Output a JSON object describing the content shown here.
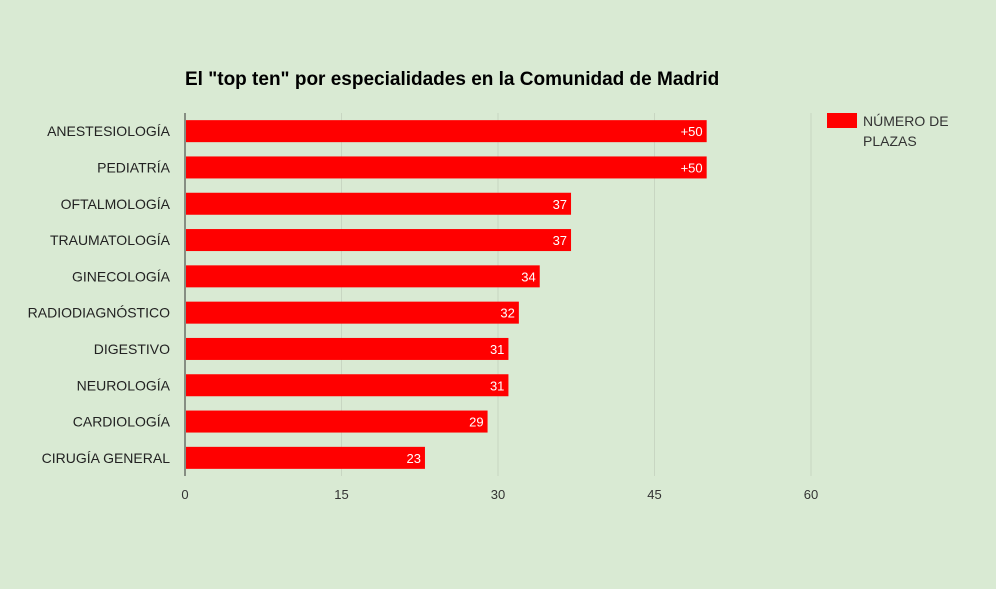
{
  "chart_data": {
    "type": "bar",
    "orientation": "horizontal",
    "title": "El \"top ten\" por especialidades en la Comunidad de Madrid",
    "categories": [
      "ANESTESIOLOGÍA",
      "PEDIATRÍA",
      "OFTALMOLOGÍA",
      "TRAUMATOLOGÍA",
      "GINECOLOGÍA",
      "RADIODIAGNÓSTICO",
      "DIGESTIVO",
      "NEUROLOGÍA",
      "CARDIOLOGÍA",
      "CIRUGÍA GENERAL"
    ],
    "series": [
      {
        "name": "NÚMERO DE PLAZAS",
        "color": "#ff0000",
        "values": [
          50,
          50,
          37,
          37,
          34,
          32,
          31,
          31,
          29,
          23
        ],
        "data_labels": [
          "+50",
          "+50",
          "37",
          "37",
          "34",
          "32",
          "31",
          "31",
          "29",
          "23"
        ]
      }
    ],
    "xlim": [
      0,
      60
    ],
    "xticks": [
      0,
      15,
      30,
      45,
      60
    ],
    "grid": true,
    "legend_position": "top-right",
    "background": "#d9ead3"
  }
}
